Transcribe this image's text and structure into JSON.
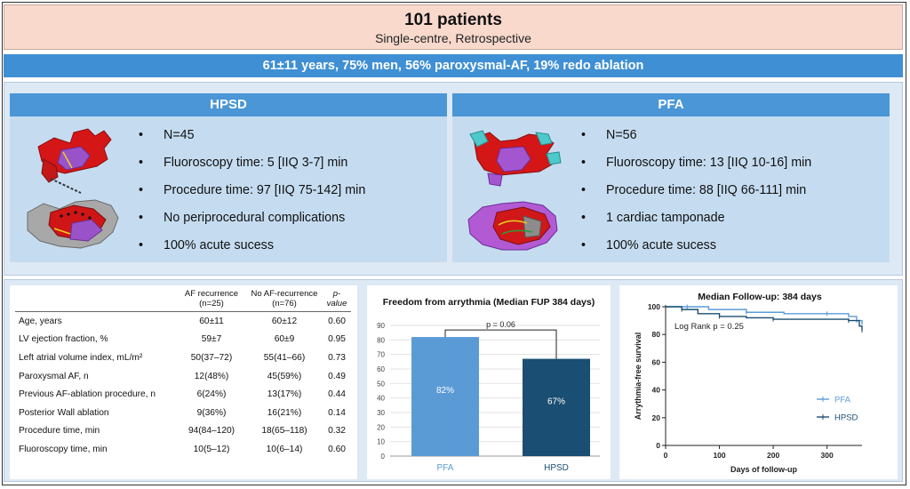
{
  "header": {
    "title": "101 patients",
    "subtitle": "Single-centre, Retrospective"
  },
  "demographics": "61±11 years, 75% men, 56% paroxysmal-AF, 19% redo ablation",
  "groups": [
    {
      "name": "HPSD",
      "bullets": [
        "N=45",
        "Fluoroscopy time: 5 [IIQ 3-7] min",
        "Procedure time: 97 [IIQ 75-142] min",
        "No periprocedural complications",
        "100% acute sucess"
      ]
    },
    {
      "name": "PFA",
      "bullets": [
        "N=56",
        "Fluoroscopy time: 13 [IIQ 10-16] min",
        "Procedure time: 88 [IIQ 66-111] min",
        "1 cardiac tamponade",
        "100% acute sucess"
      ]
    }
  ],
  "table": {
    "headers": [
      "",
      "AF recurrence (n=25)",
      "No AF-recurrence (n=76)",
      "p-value"
    ],
    "rows": [
      [
        "Age, years",
        "60±11",
        "60±12",
        "0.60"
      ],
      [
        "LV ejection fraction, %",
        "59±7",
        "60±9",
        "0.95"
      ],
      [
        "Left atrial volume index, mL/m²",
        "50(37–72)",
        "55(41–66)",
        "0.73"
      ],
      [
        "Paroxysmal AF, n",
        "12(48%)",
        "45(59%)",
        "0.49"
      ],
      [
        "Previous AF-ablation procedure, n",
        "6(24%)",
        "13(17%)",
        "0.44"
      ],
      [
        "Posterior Wall ablation",
        "9(36%)",
        "16(21%)",
        "0.14"
      ],
      [
        "Procedure time, min",
        "94(84–120)",
        "18(65–118)",
        "0.32"
      ],
      [
        "Fluoroscopy time, min",
        "10(5–12)",
        "10(6–14)",
        "0.60"
      ]
    ]
  },
  "colors": {
    "pfa": "#5b9bd5",
    "hpsd": "#1a4e72",
    "band": "#3f8fd4"
  },
  "chart_data": [
    {
      "type": "bar",
      "title": "Freedom from arrythmia (Median FUP 384 days)",
      "categories": [
        "PFA",
        "HPSD"
      ],
      "values": [
        82,
        67
      ],
      "data_labels": [
        "82%",
        "67%"
      ],
      "ylim": [
        0,
        90
      ],
      "yticks": [
        0,
        10,
        20,
        30,
        40,
        50,
        60,
        70,
        80,
        90
      ],
      "annotation": "p = 0.06"
    },
    {
      "type": "line",
      "title": "Median Follow-up: 384 days",
      "xlabel": "Days of follow-up",
      "ylabel": "Arrythmia-free survival",
      "xlim": [
        0,
        365
      ],
      "ylim": [
        0,
        100
      ],
      "xticks": [
        0,
        100,
        200,
        300
      ],
      "yticks": [
        0,
        20,
        40,
        60,
        80,
        100
      ],
      "annotation": "Log Rank p = 0.25",
      "legend_position": "bottom-right",
      "series": [
        {
          "name": "PFA",
          "x": [
            0,
            40,
            80,
            150,
            220,
            300,
            340,
            355,
            365
          ],
          "y": [
            100,
            100,
            98,
            96,
            95,
            95,
            93,
            90,
            87
          ]
        },
        {
          "name": "HPSD",
          "x": [
            0,
            30,
            60,
            100,
            150,
            200,
            280,
            340,
            360,
            365
          ],
          "y": [
            100,
            98,
            95,
            93,
            92,
            91,
            91,
            90,
            86,
            83
          ]
        }
      ]
    }
  ]
}
